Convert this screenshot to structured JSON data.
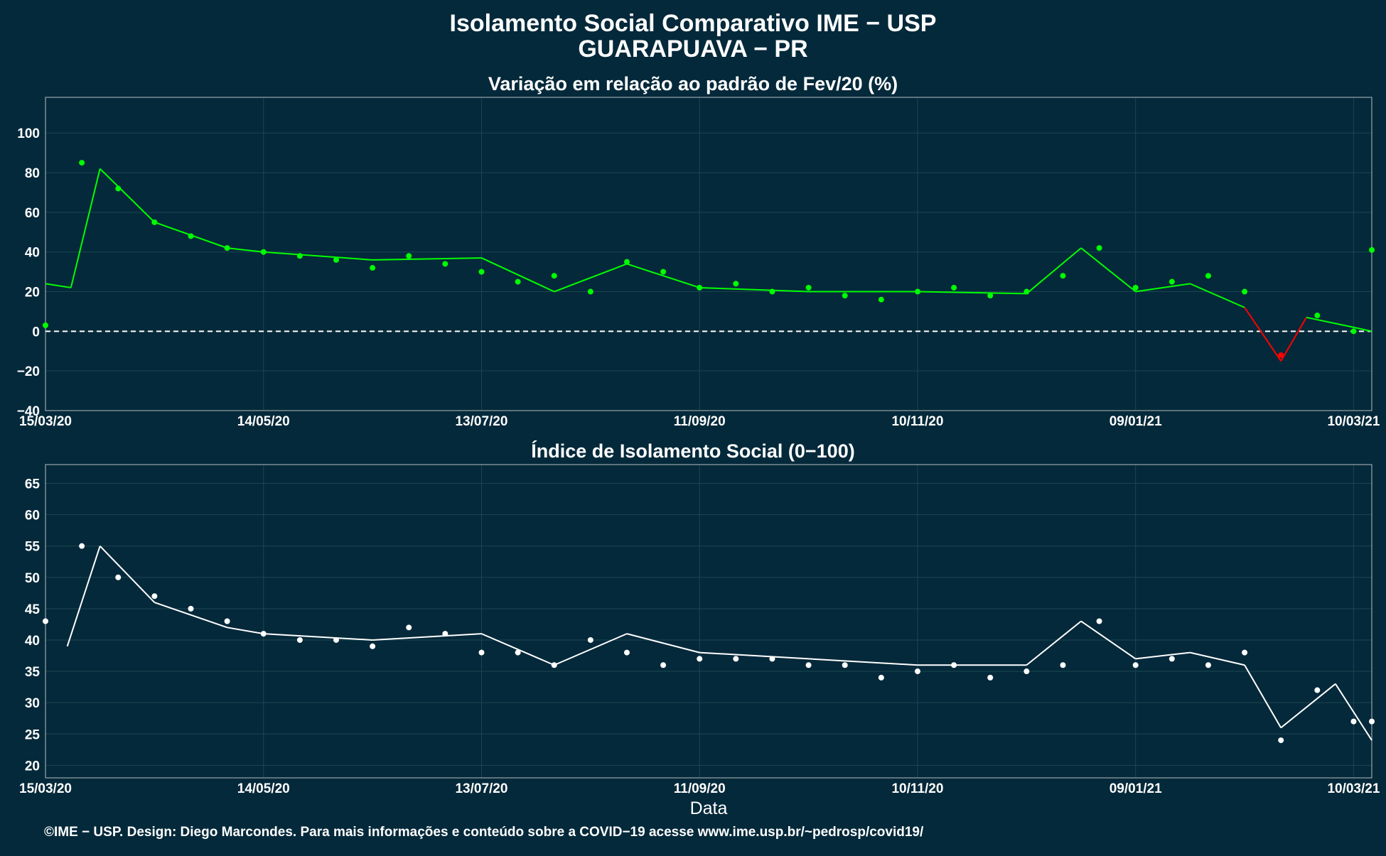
{
  "title": "Isolamento Social Comparativo IME − USP",
  "subtitle": "GUARAPUAVA − PR",
  "footer": "©IME − USP. Design: Diego Marcondes. Para mais informações e conteúdo sobre a COVID−19 acesse www.ime.usp.br/~pedrosp/covid19/",
  "colors": {
    "background": "#04293a",
    "positive": "#00ff00",
    "negative": "#ff0000",
    "index": "#ffffff",
    "grid": "#1c4650",
    "zero_line": "#ffffff"
  },
  "chart_data": [
    {
      "type": "scatter",
      "title": "Variação em relação ao padrão de Fev/20 (%)",
      "xlabel": "",
      "ylabel": "",
      "x_start": "2020-03-15",
      "x_end": "2021-03-15",
      "x_tick_labels": [
        "15/03/20",
        "14/05/20",
        "13/07/20",
        "11/09/20",
        "10/11/20",
        "09/01/21",
        "10/03/21"
      ],
      "y_ticks": [
        -40,
        -20,
        0,
        20,
        40,
        60,
        80,
        100
      ],
      "ylim": [
        -40,
        118
      ],
      "zero_line": true,
      "grid": true,
      "series": [
        {
          "role": "daily points",
          "x": [
            "2020-03-15",
            "2020-03-25",
            "2020-04-04",
            "2020-04-14",
            "2020-04-24",
            "2020-05-04",
            "2020-05-14",
            "2020-05-24",
            "2020-06-03",
            "2020-06-13",
            "2020-06-23",
            "2020-07-03",
            "2020-07-13",
            "2020-07-23",
            "2020-08-02",
            "2020-08-12",
            "2020-08-22",
            "2020-09-01",
            "2020-09-11",
            "2020-09-21",
            "2020-10-01",
            "2020-10-11",
            "2020-10-21",
            "2020-10-31",
            "2020-11-10",
            "2020-11-20",
            "2020-11-30",
            "2020-12-10",
            "2020-12-20",
            "2020-12-30",
            "2021-01-09",
            "2021-01-19",
            "2021-01-29",
            "2021-02-08",
            "2021-02-18",
            "2021-02-28",
            "2021-03-10",
            "2021-03-15"
          ],
          "y": [
            3,
            85,
            72,
            55,
            48,
            42,
            40,
            38,
            36,
            32,
            38,
            34,
            30,
            25,
            28,
            20,
            35,
            30,
            22,
            24,
            20,
            22,
            18,
            16,
            20,
            22,
            18,
            20,
            28,
            42,
            22,
            25,
            28,
            20,
            -12,
            8,
            0,
            41
          ]
        },
        {
          "role": "moving average",
          "x": [
            "2020-03-15",
            "2020-03-22",
            "2020-03-30",
            "2020-04-14",
            "2020-05-04",
            "2020-05-14",
            "2020-06-13",
            "2020-07-13",
            "2020-08-02",
            "2020-08-22",
            "2020-09-11",
            "2020-10-11",
            "2020-11-10",
            "2020-12-10",
            "2020-12-25",
            "2021-01-09",
            "2021-01-24",
            "2021-02-08",
            "2021-02-18",
            "2021-02-25",
            "2021-03-10",
            "2021-03-15"
          ],
          "y": [
            24,
            22,
            82,
            55,
            42,
            40,
            36,
            37,
            20,
            34,
            22,
            20,
            20,
            19,
            42,
            20,
            24,
            12,
            -15,
            7,
            2,
            0
          ]
        }
      ]
    },
    {
      "type": "scatter",
      "title": "Índice de Isolamento Social (0−100)",
      "xlabel": "Data",
      "ylabel": "",
      "x_start": "2020-03-15",
      "x_end": "2021-03-15",
      "x_tick_labels": [
        "15/03/20",
        "14/05/20",
        "13/07/20",
        "11/09/20",
        "10/11/20",
        "09/01/21",
        "10/03/21"
      ],
      "y_ticks": [
        20,
        25,
        30,
        35,
        40,
        45,
        50,
        55,
        60,
        65
      ],
      "ylim": [
        18,
        68
      ],
      "grid": true,
      "series": [
        {
          "role": "daily points",
          "x": [
            "2020-03-15",
            "2020-03-25",
            "2020-04-04",
            "2020-04-14",
            "2020-04-24",
            "2020-05-04",
            "2020-05-14",
            "2020-05-24",
            "2020-06-03",
            "2020-06-13",
            "2020-06-23",
            "2020-07-03",
            "2020-07-13",
            "2020-07-23",
            "2020-08-02",
            "2020-08-12",
            "2020-08-22",
            "2020-09-01",
            "2020-09-11",
            "2020-09-21",
            "2020-10-01",
            "2020-10-11",
            "2020-10-21",
            "2020-10-31",
            "2020-11-10",
            "2020-11-20",
            "2020-11-30",
            "2020-12-10",
            "2020-12-20",
            "2020-12-30",
            "2021-01-09",
            "2021-01-19",
            "2021-01-29",
            "2021-02-08",
            "2021-02-18",
            "2021-02-28",
            "2021-03-10",
            "2021-03-15"
          ],
          "y": [
            43,
            55,
            50,
            47,
            45,
            43,
            41,
            40,
            40,
            39,
            42,
            41,
            38,
            38,
            36,
            40,
            38,
            36,
            37,
            37,
            37,
            36,
            36,
            34,
            35,
            36,
            34,
            35,
            36,
            43,
            36,
            37,
            36,
            38,
            24,
            32,
            27,
            27
          ]
        },
        {
          "role": "moving average",
          "x": [
            "2020-03-21",
            "2020-03-30",
            "2020-04-14",
            "2020-05-04",
            "2020-05-14",
            "2020-06-13",
            "2020-07-13",
            "2020-08-02",
            "2020-08-22",
            "2020-09-11",
            "2020-10-11",
            "2020-11-10",
            "2020-12-10",
            "2020-12-25",
            "2021-01-09",
            "2021-01-24",
            "2021-02-08",
            "2021-02-18",
            "2021-03-05",
            "2021-03-15"
          ],
          "y": [
            39,
            55,
            46,
            42,
            41,
            40,
            41,
            36,
            41,
            38,
            37,
            36,
            36,
            43,
            37,
            38,
            36,
            26,
            33,
            24
          ]
        }
      ]
    }
  ]
}
